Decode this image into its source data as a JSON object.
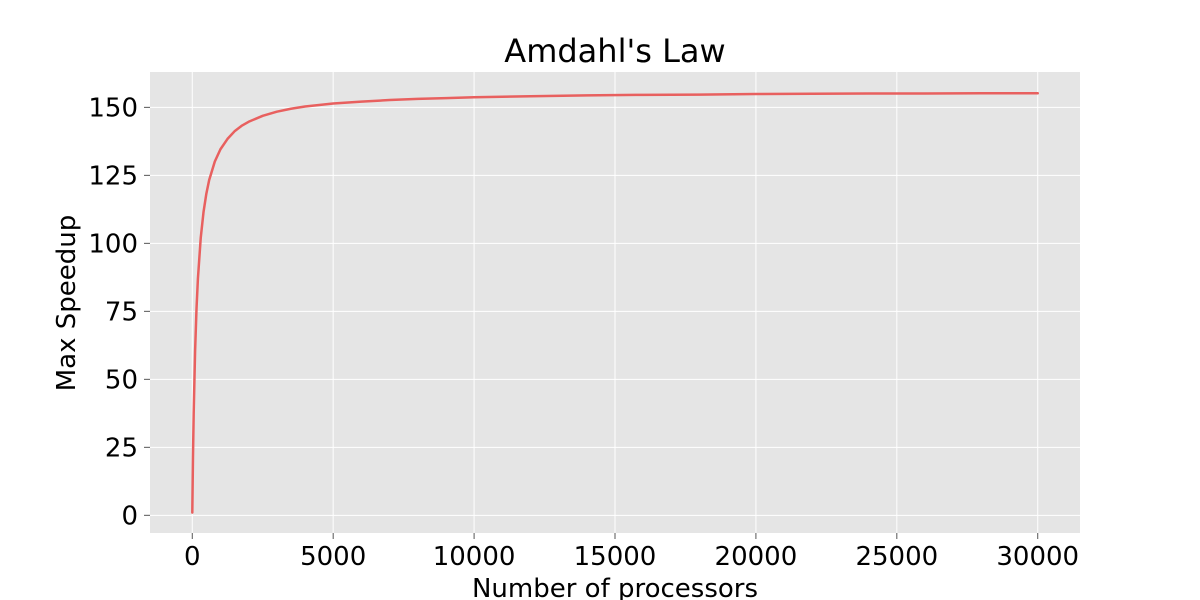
{
  "chart_data": {
    "type": "line",
    "title": "Amdahl's Law",
    "xlabel": "Number of processors",
    "ylabel": "Max Speedup",
    "xlim": [
      -1500,
      31500
    ],
    "ylim": [
      -6.5,
      163
    ],
    "xticks": [
      0,
      5000,
      10000,
      15000,
      20000,
      25000,
      30000
    ],
    "yticks": [
      0,
      25,
      50,
      75,
      100,
      125,
      150
    ],
    "grid": true,
    "series": [
      {
        "color": "#E8605F",
        "x": [
          1,
          25,
          50,
          100,
          150,
          200,
          300,
          400,
          500,
          600,
          800,
          1000,
          1250,
          1500,
          1750,
          2000,
          2500,
          3000,
          3500,
          4000,
          5000,
          6000,
          7000,
          8000,
          9000,
          10000,
          12000,
          14000,
          16000,
          18000,
          20000,
          22000,
          24000,
          26000,
          28000,
          30000
        ],
        "y": [
          1.0,
          21.3,
          37.5,
          60.4,
          75.9,
          87.0,
          102.0,
          111.6,
          118.3,
          123.3,
          130.1,
          134.6,
          138.4,
          141.2,
          143.2,
          144.7,
          146.9,
          148.4,
          149.5,
          150.3,
          151.4,
          152.1,
          152.7,
          153.1,
          153.4,
          153.7,
          154.1,
          154.4,
          154.6,
          154.7,
          154.9,
          155.0,
          155.1,
          155.1,
          155.2,
          155.2
        ]
      }
    ]
  }
}
